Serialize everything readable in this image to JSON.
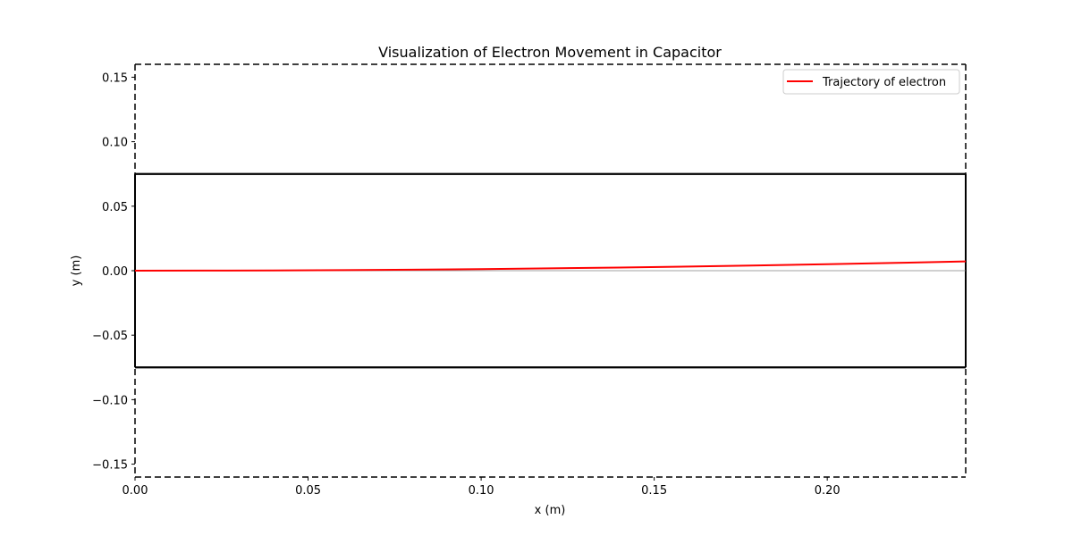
{
  "chart_data": {
    "type": "line",
    "title": "Visualization of Electron Movement in Capacitor",
    "xlabel": "x (m)",
    "ylabel": "y (m)",
    "xlim": [
      0,
      0.24
    ],
    "ylim": [
      -0.16,
      0.16
    ],
    "x_ticks": [
      0.0,
      0.05,
      0.1,
      0.15,
      0.2
    ],
    "x_tick_labels": [
      "0.00",
      "0.05",
      "0.10",
      "0.15",
      "0.20"
    ],
    "y_ticks": [
      0.15,
      0.1,
      0.05,
      0.0,
      -0.05,
      -0.1,
      -0.15
    ],
    "y_tick_labels": [
      "0.15",
      "0.10",
      "0.05",
      "0.00",
      "−0.05",
      "−0.10",
      "−0.15"
    ],
    "grid": false,
    "legend_position": "top-right",
    "series": [
      {
        "name": "Trajectory of electron",
        "color": "#ff0000",
        "x": [
          0.0,
          0.02,
          0.04,
          0.06,
          0.08,
          0.1,
          0.12,
          0.14,
          0.16,
          0.18,
          0.2,
          0.22,
          0.24
        ],
        "y": [
          0.0,
          5e-05,
          0.0002,
          0.00045,
          0.0008,
          0.00125,
          0.0018,
          0.00245,
          0.0032,
          0.00405,
          0.005,
          0.00605,
          0.0072
        ]
      }
    ],
    "capacitor_plates": {
      "y_values": [
        0.075,
        -0.075
      ],
      "x_range": [
        0,
        0.24
      ],
      "color": "#000000"
    },
    "center_axis_line": {
      "y": 0.0,
      "color": "#808080"
    },
    "dashed_boundary": {
      "y_range": [
        -0.16,
        0.16
      ],
      "x_range": [
        0,
        0.24
      ]
    }
  }
}
